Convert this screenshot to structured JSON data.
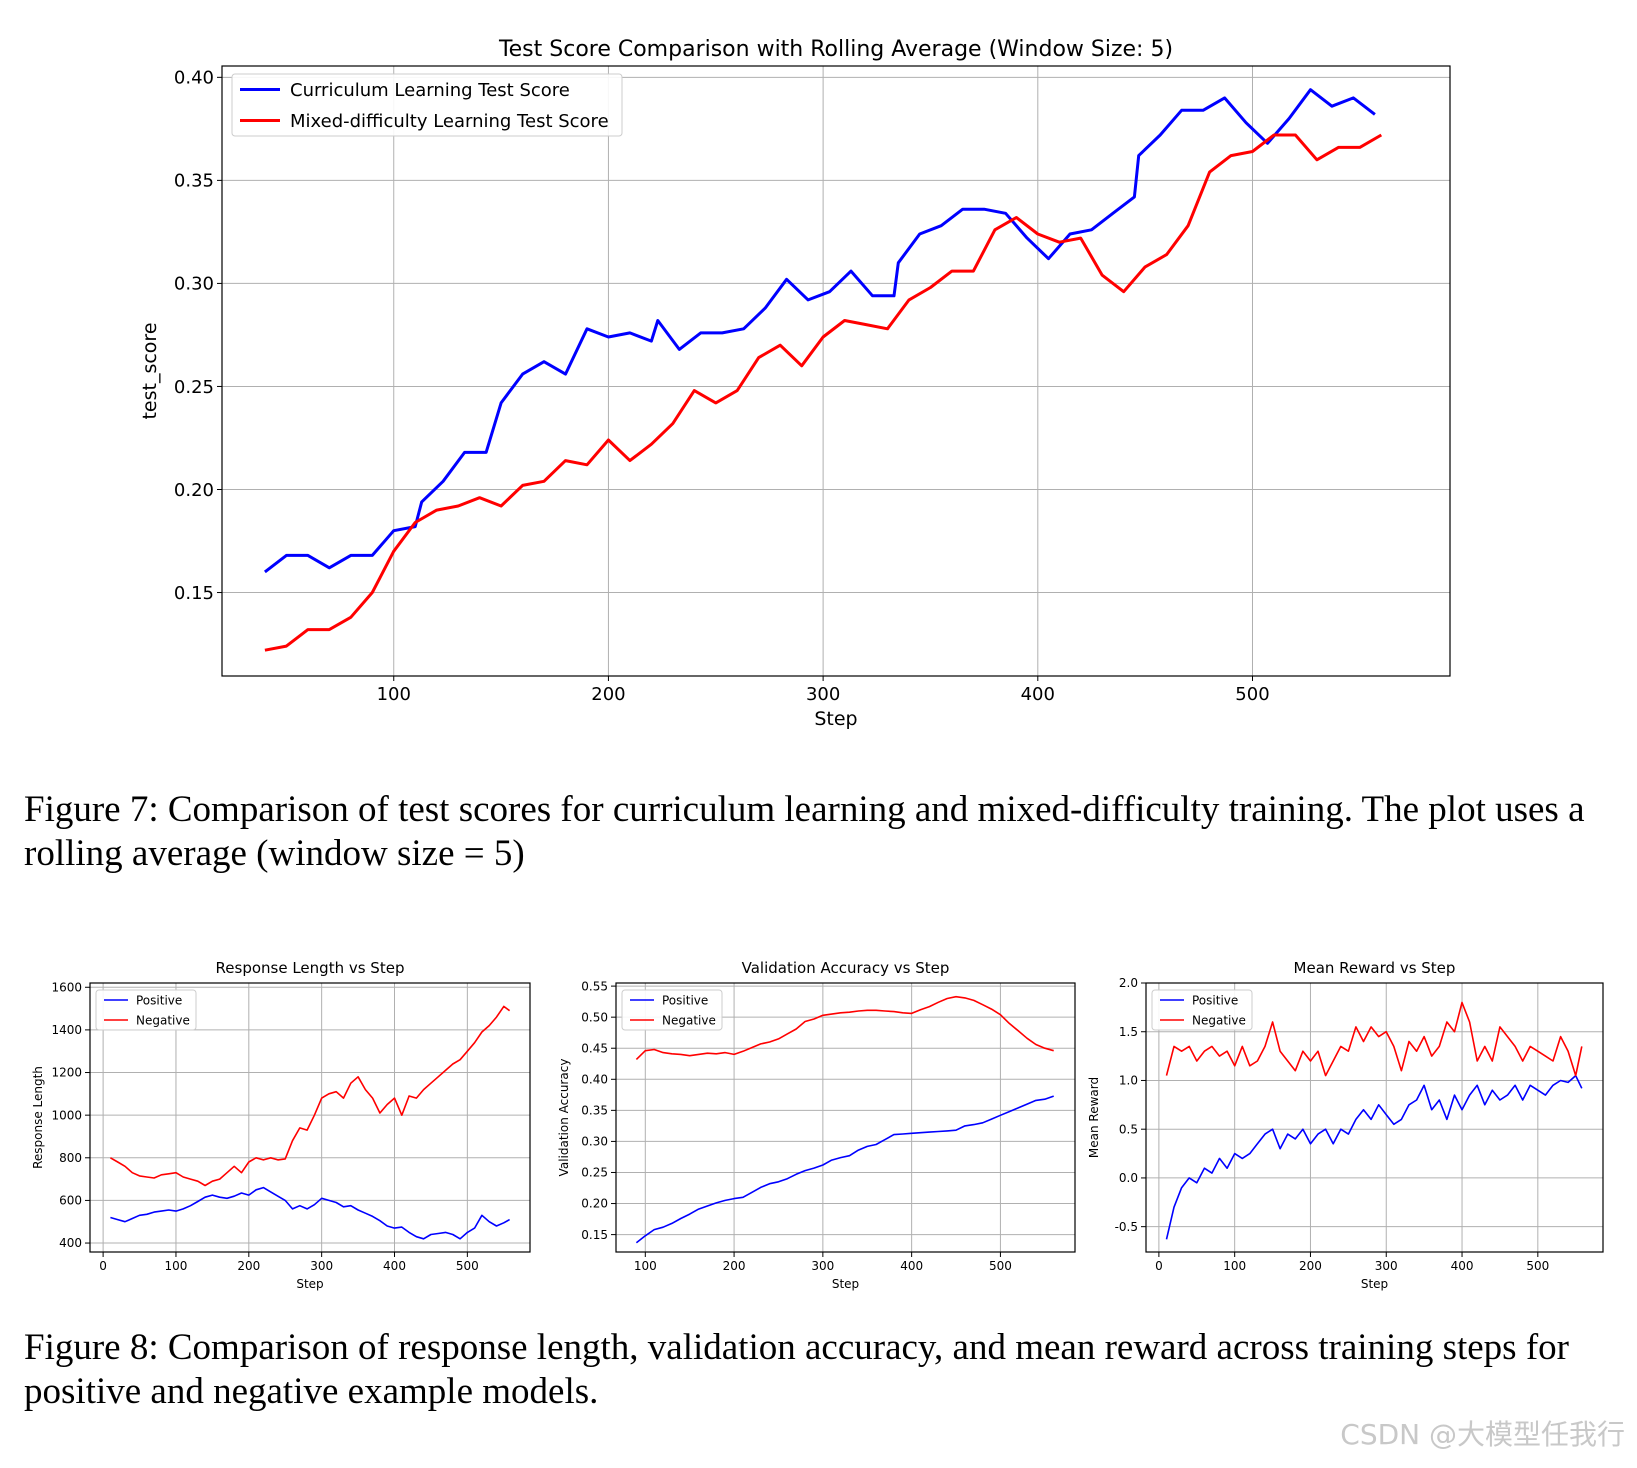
{
  "chart_data": [
    {
      "type": "line",
      "title": "Test Score Comparison with Rolling Average (Window Size: 5)",
      "xlabel": "Step",
      "ylabel": "test_score",
      "xlim": [
        20,
        592
      ],
      "ylim": [
        0.1095,
        0.4055
      ],
      "xticks": [
        100,
        200,
        300,
        400,
        500
      ],
      "yticks": [
        0.15,
        0.2,
        0.25,
        0.3,
        0.35,
        0.4
      ],
      "ytick_decimals": 2,
      "grid": true,
      "legend": "top-left",
      "series": [
        {
          "name": "Curriculum Learning Test Score",
          "color": "#0000ff",
          "x": [
            40,
            50,
            60,
            70,
            80,
            90,
            100,
            110,
            113,
            123,
            133,
            143,
            150,
            160,
            170,
            180,
            190,
            200,
            210,
            220,
            223,
            233,
            243,
            253,
            263,
            273,
            283,
            293,
            303,
            313,
            323,
            333,
            335,
            345,
            355,
            365,
            375,
            385,
            395,
            405,
            415,
            425,
            435,
            445,
            447,
            457,
            467,
            477,
            487,
            497,
            507,
            517,
            527,
            537,
            547,
            557
          ],
          "y": [
            0.16,
            0.168,
            0.168,
            0.162,
            0.168,
            0.168,
            0.18,
            0.182,
            0.194,
            0.204,
            0.218,
            0.218,
            0.242,
            0.256,
            0.262,
            0.256,
            0.278,
            0.274,
            0.276,
            0.272,
            0.282,
            0.268,
            0.276,
            0.276,
            0.278,
            0.288,
            0.302,
            0.292,
            0.296,
            0.306,
            0.294,
            0.294,
            0.31,
            0.324,
            0.328,
            0.336,
            0.336,
            0.334,
            0.322,
            0.312,
            0.324,
            0.326,
            0.334,
            0.342,
            0.362,
            0.372,
            0.384,
            0.384,
            0.39,
            0.378,
            0.368,
            0.38,
            0.394,
            0.386,
            0.39,
            0.382
          ]
        },
        {
          "name": "Mixed-difficulty Learning Test Score",
          "color": "#ff0000",
          "x": [
            40,
            50,
            60,
            70,
            80,
            90,
            100,
            110,
            120,
            130,
            140,
            150,
            160,
            170,
            180,
            190,
            200,
            210,
            220,
            230,
            240,
            250,
            260,
            270,
            280,
            290,
            300,
            310,
            320,
            330,
            340,
            350,
            360,
            370,
            380,
            390,
            400,
            410,
            420,
            430,
            440,
            450,
            460,
            470,
            480,
            490,
            500,
            510,
            520,
            530,
            540,
            550,
            560
          ],
          "y": [
            0.122,
            0.124,
            0.132,
            0.132,
            0.138,
            0.15,
            0.17,
            0.184,
            0.19,
            0.192,
            0.196,
            0.192,
            0.202,
            0.204,
            0.214,
            0.212,
            0.224,
            0.214,
            0.222,
            0.232,
            0.248,
            0.242,
            0.248,
            0.264,
            0.27,
            0.26,
            0.274,
            0.282,
            0.28,
            0.278,
            0.292,
            0.298,
            0.306,
            0.306,
            0.326,
            0.332,
            0.324,
            0.32,
            0.322,
            0.304,
            0.296,
            0.308,
            0.314,
            0.328,
            0.354,
            0.362,
            0.364,
            0.372,
            0.372,
            0.36,
            0.366,
            0.366,
            0.372
          ]
        }
      ]
    },
    {
      "type": "line",
      "title": "Response Length vs Step",
      "xlabel": "Step",
      "ylabel": "Response Length",
      "xlim": [
        -18,
        586
      ],
      "ylim": [
        358,
        1620
      ],
      "xticks": [
        0,
        100,
        200,
        300,
        400,
        500
      ],
      "yticks": [
        400,
        600,
        800,
        1000,
        1200,
        1400,
        1600
      ],
      "ytick_decimals": 0,
      "grid": true,
      "legend": "top-left",
      "series": [
        {
          "name": "Positive",
          "color": "#0000ff",
          "x": [
            10,
            20,
            30,
            40,
            50,
            60,
            70,
            80,
            90,
            100,
            110,
            120,
            130,
            140,
            150,
            160,
            170,
            180,
            190,
            200,
            210,
            220,
            230,
            240,
            250,
            260,
            270,
            280,
            290,
            300,
            310,
            320,
            330,
            340,
            350,
            360,
            370,
            380,
            390,
            400,
            410,
            420,
            430,
            440,
            450,
            460,
            470,
            480,
            490,
            500,
            510,
            520,
            530,
            540,
            550,
            558
          ],
          "y": [
            520,
            510,
            500,
            515,
            530,
            535,
            545,
            550,
            555,
            550,
            560,
            575,
            595,
            615,
            625,
            615,
            610,
            620,
            635,
            625,
            650,
            660,
            640,
            620,
            600,
            560,
            575,
            560,
            580,
            610,
            600,
            590,
            570,
            575,
            555,
            540,
            525,
            505,
            480,
            470,
            475,
            450,
            430,
            420,
            440,
            445,
            450,
            440,
            420,
            450,
            470,
            530,
            500,
            480,
            495,
            510
          ]
        },
        {
          "name": "Negative",
          "color": "#ff0000",
          "x": [
            10,
            20,
            30,
            40,
            50,
            60,
            70,
            80,
            90,
            100,
            110,
            120,
            130,
            140,
            150,
            160,
            170,
            180,
            190,
            200,
            210,
            220,
            230,
            240,
            250,
            260,
            270,
            280,
            290,
            300,
            310,
            320,
            330,
            340,
            350,
            360,
            370,
            380,
            390,
            400,
            410,
            420,
            430,
            440,
            450,
            460,
            470,
            480,
            490,
            500,
            510,
            520,
            530,
            540,
            550,
            558
          ],
          "y": [
            800,
            780,
            760,
            730,
            715,
            710,
            705,
            720,
            725,
            730,
            710,
            700,
            690,
            670,
            690,
            700,
            730,
            760,
            730,
            780,
            800,
            790,
            800,
            790,
            795,
            880,
            940,
            930,
            1000,
            1080,
            1100,
            1110,
            1080,
            1150,
            1180,
            1120,
            1080,
            1010,
            1050,
            1080,
            1000,
            1090,
            1080,
            1120,
            1150,
            1180,
            1210,
            1240,
            1260,
            1300,
            1340,
            1390,
            1420,
            1460,
            1510,
            1490
          ]
        }
      ]
    },
    {
      "type": "line",
      "title": "Validation Accuracy vs Step",
      "xlabel": "Step",
      "ylabel": "Validation Accuracy",
      "xlim": [
        67,
        584
      ],
      "ylim": [
        0.122,
        0.555
      ],
      "xticks": [
        100,
        200,
        300,
        400,
        500
      ],
      "yticks": [
        0.15,
        0.2,
        0.25,
        0.3,
        0.35,
        0.4,
        0.45,
        0.5,
        0.55
      ],
      "ytick_decimals": 2,
      "grid": true,
      "legend": "top-left",
      "series": [
        {
          "name": "Positive",
          "color": "#0000ff",
          "x": [
            90,
            100,
            110,
            120,
            130,
            140,
            150,
            160,
            170,
            180,
            190,
            200,
            210,
            220,
            230,
            240,
            250,
            260,
            270,
            280,
            290,
            300,
            310,
            320,
            330,
            340,
            350,
            360,
            370,
            380,
            390,
            400,
            410,
            420,
            430,
            440,
            450,
            460,
            470,
            480,
            490,
            500,
            510,
            520,
            530,
            540,
            550,
            560
          ],
          "y": [
            0.137,
            0.148,
            0.158,
            0.162,
            0.168,
            0.176,
            0.183,
            0.191,
            0.196,
            0.201,
            0.205,
            0.208,
            0.21,
            0.218,
            0.226,
            0.232,
            0.235,
            0.24,
            0.247,
            0.253,
            0.257,
            0.262,
            0.27,
            0.274,
            0.277,
            0.286,
            0.292,
            0.295,
            0.303,
            0.311,
            0.312,
            0.313,
            0.314,
            0.315,
            0.316,
            0.317,
            0.318,
            0.325,
            0.327,
            0.33,
            0.336,
            0.342,
            0.348,
            0.354,
            0.36,
            0.366,
            0.368,
            0.373
          ]
        },
        {
          "name": "Negative",
          "color": "#ff0000",
          "x": [
            90,
            100,
            110,
            120,
            130,
            140,
            150,
            160,
            170,
            180,
            190,
            200,
            210,
            220,
            230,
            240,
            250,
            260,
            270,
            280,
            290,
            300,
            310,
            320,
            330,
            340,
            350,
            360,
            370,
            380,
            390,
            400,
            410,
            420,
            430,
            440,
            450,
            460,
            470,
            480,
            490,
            500,
            510,
            520,
            530,
            540,
            550,
            560
          ],
          "y": [
            0.432,
            0.446,
            0.448,
            0.443,
            0.441,
            0.44,
            0.438,
            0.44,
            0.442,
            0.441,
            0.443,
            0.44,
            0.445,
            0.451,
            0.457,
            0.46,
            0.465,
            0.473,
            0.481,
            0.493,
            0.497,
            0.503,
            0.505,
            0.507,
            0.508,
            0.51,
            0.511,
            0.511,
            0.51,
            0.509,
            0.507,
            0.506,
            0.512,
            0.517,
            0.524,
            0.53,
            0.533,
            0.531,
            0.527,
            0.52,
            0.513,
            0.504,
            0.49,
            0.478,
            0.466,
            0.456,
            0.45,
            0.446
          ]
        }
      ]
    },
    {
      "type": "line",
      "title": "Mean Reward vs Step",
      "xlabel": "Step",
      "ylabel": "Mean Reward",
      "xlim": [
        -17,
        586
      ],
      "ylim": [
        -0.76,
        2.0
      ],
      "xticks": [
        0,
        100,
        200,
        300,
        400,
        500
      ],
      "yticks": [
        -0.5,
        0,
        0.5,
        1,
        1.5,
        2
      ],
      "ytick_decimals": 1,
      "grid": true,
      "legend": "top-left",
      "series": [
        {
          "name": "Positive",
          "color": "#0000ff",
          "x": [
            10,
            20,
            30,
            40,
            50,
            60,
            70,
            80,
            90,
            100,
            110,
            120,
            130,
            140,
            150,
            160,
            170,
            180,
            190,
            200,
            210,
            220,
            230,
            240,
            250,
            260,
            270,
            280,
            290,
            300,
            310,
            320,
            330,
            340,
            350,
            360,
            370,
            380,
            390,
            400,
            410,
            420,
            430,
            440,
            450,
            460,
            470,
            480,
            490,
            500,
            510,
            520,
            530,
            540,
            550,
            558
          ],
          "y": [
            -0.63,
            -0.3,
            -0.1,
            0.0,
            -0.05,
            0.1,
            0.05,
            0.2,
            0.1,
            0.25,
            0.2,
            0.25,
            0.35,
            0.45,
            0.5,
            0.3,
            0.45,
            0.4,
            0.5,
            0.35,
            0.45,
            0.5,
            0.35,
            0.5,
            0.45,
            0.6,
            0.7,
            0.6,
            0.75,
            0.65,
            0.55,
            0.6,
            0.75,
            0.8,
            0.95,
            0.7,
            0.8,
            0.6,
            0.85,
            0.7,
            0.85,
            0.95,
            0.75,
            0.9,
            0.8,
            0.85,
            0.95,
            0.8,
            0.95,
            0.9,
            0.85,
            0.95,
            1.0,
            0.98,
            1.05,
            0.92
          ]
        },
        {
          "name": "Negative",
          "color": "#ff0000",
          "x": [
            10,
            20,
            30,
            40,
            50,
            60,
            70,
            80,
            90,
            100,
            110,
            120,
            130,
            140,
            150,
            160,
            170,
            180,
            190,
            200,
            210,
            220,
            230,
            240,
            250,
            260,
            270,
            280,
            290,
            300,
            310,
            320,
            330,
            340,
            350,
            360,
            370,
            380,
            390,
            400,
            410,
            420,
            430,
            440,
            450,
            460,
            470,
            480,
            490,
            500,
            510,
            520,
            530,
            540,
            550,
            558
          ],
          "y": [
            1.05,
            1.35,
            1.3,
            1.35,
            1.2,
            1.3,
            1.35,
            1.25,
            1.3,
            1.15,
            1.35,
            1.15,
            1.2,
            1.35,
            1.6,
            1.3,
            1.2,
            1.1,
            1.3,
            1.2,
            1.3,
            1.05,
            1.2,
            1.35,
            1.3,
            1.55,
            1.4,
            1.55,
            1.45,
            1.5,
            1.35,
            1.1,
            1.4,
            1.3,
            1.45,
            1.25,
            1.35,
            1.6,
            1.5,
            1.8,
            1.6,
            1.2,
            1.35,
            1.2,
            1.55,
            1.45,
            1.35,
            1.2,
            1.35,
            1.3,
            1.25,
            1.2,
            1.45,
            1.3,
            1.05,
            1.35
          ]
        }
      ]
    }
  ],
  "captions": {
    "figure7": "Figure 7: Comparison of test scores for curriculum learning and mixed-difficulty training. The plot uses a rolling average (window size = 5)",
    "figure8": "Figure 8: Comparison of response length, validation accuracy, and mean reward across training steps for positive and negative example models."
  },
  "watermark": "CSDN @大模型任我行"
}
